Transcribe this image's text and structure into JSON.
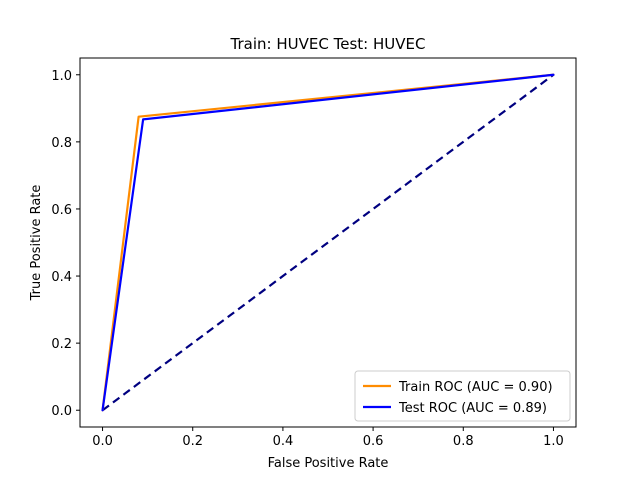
{
  "chart_data": {
    "type": "line",
    "title": "Train: HUVEC   Test: HUVEC",
    "xlabel": "False Positive Rate",
    "ylabel": "True Positive Rate",
    "xlim": [
      -0.05,
      1.05
    ],
    "ylim": [
      -0.05,
      1.05
    ],
    "xticks": [
      0.0,
      0.2,
      0.4,
      0.6,
      0.8,
      1.0
    ],
    "xtick_labels": [
      "0.0",
      "0.2",
      "0.4",
      "0.6",
      "0.8",
      "1.0"
    ],
    "yticks": [
      0.0,
      0.2,
      0.4,
      0.6,
      0.8,
      1.0
    ],
    "ytick_labels": [
      "0.0",
      "0.2",
      "0.4",
      "0.6",
      "0.8",
      "1.0"
    ],
    "grid": false,
    "legend_position": "lower-right",
    "series": [
      {
        "name": "Train ROC (AUC = 0.90)",
        "color": "#ff8c00",
        "style": "solid",
        "in_legend": true,
        "x": [
          0.0,
          0.08,
          1.0
        ],
        "y": [
          0.0,
          0.875,
          1.0
        ]
      },
      {
        "name": "Test ROC (AUC = 0.89)",
        "color": "#0000ff",
        "style": "solid",
        "in_legend": true,
        "x": [
          0.0,
          0.09,
          1.0
        ],
        "y": [
          0.0,
          0.867,
          1.0
        ]
      },
      {
        "color": "#000080",
        "style": "dashed",
        "in_legend": false,
        "x": [
          0.0,
          1.0
        ],
        "y": [
          0.0,
          1.0
        ]
      }
    ]
  }
}
